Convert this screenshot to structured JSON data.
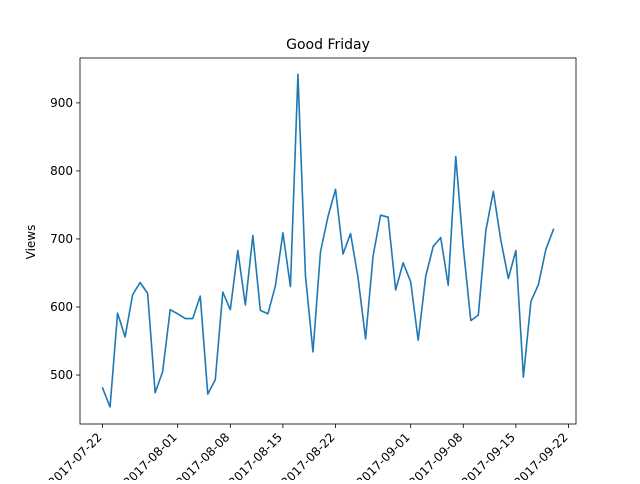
{
  "chart_data": {
    "type": "line",
    "title": "Good Friday",
    "xlabel": "",
    "ylabel": "Views",
    "x_ticks": [
      "2017-07-22",
      "2017-08-01",
      "2017-08-08",
      "2017-08-15",
      "2017-08-22",
      "2017-09-01",
      "2017-09-08",
      "2017-09-15",
      "2017-09-22"
    ],
    "y_ticks": [
      500,
      600,
      700,
      800,
      900
    ],
    "xlim": [
      "2017-07-19",
      "2017-09-23"
    ],
    "ylim": [
      428,
      966
    ],
    "grid": false,
    "color": "#1f77b4",
    "series": [
      {
        "x": [
          "2017-07-22",
          "2017-07-23",
          "2017-07-24",
          "2017-07-25",
          "2017-07-26",
          "2017-07-27",
          "2017-07-28",
          "2017-07-29",
          "2017-07-30",
          "2017-07-31",
          "2017-08-01",
          "2017-08-02",
          "2017-08-03",
          "2017-08-04",
          "2017-08-05",
          "2017-08-06",
          "2017-08-07",
          "2017-08-08",
          "2017-08-09",
          "2017-08-10",
          "2017-08-11",
          "2017-08-12",
          "2017-08-13",
          "2017-08-14",
          "2017-08-15",
          "2017-08-16",
          "2017-08-17",
          "2017-08-18",
          "2017-08-19",
          "2017-08-20",
          "2017-08-21",
          "2017-08-22",
          "2017-08-23",
          "2017-08-24",
          "2017-08-25",
          "2017-08-26",
          "2017-08-27",
          "2017-08-28",
          "2017-08-29",
          "2017-08-30",
          "2017-08-31",
          "2017-09-01",
          "2017-09-02",
          "2017-09-03",
          "2017-09-04",
          "2017-09-05",
          "2017-09-06",
          "2017-09-07",
          "2017-09-08",
          "2017-09-09",
          "2017-09-10",
          "2017-09-11",
          "2017-09-12",
          "2017-09-13",
          "2017-09-14",
          "2017-09-15",
          "2017-09-16",
          "2017-09-17",
          "2017-09-18",
          "2017-09-19",
          "2017-09-20"
        ],
        "values": [
          481,
          453,
          591,
          556,
          618,
          636,
          620,
          474,
          505,
          596,
          590,
          583,
          583,
          616,
          472,
          493,
          622,
          596,
          683,
          603,
          705,
          595,
          590,
          631,
          709,
          630,
          942,
          646,
          534,
          681,
          733,
          773,
          678,
          708,
          643,
          553,
          675,
          735,
          732,
          625,
          665,
          637,
          551,
          645,
          689,
          702,
          632,
          821,
          688,
          580,
          588,
          712,
          770,
          698,
          642,
          683,
          497,
          608,
          633,
          685,
          714
        ]
      }
    ]
  }
}
